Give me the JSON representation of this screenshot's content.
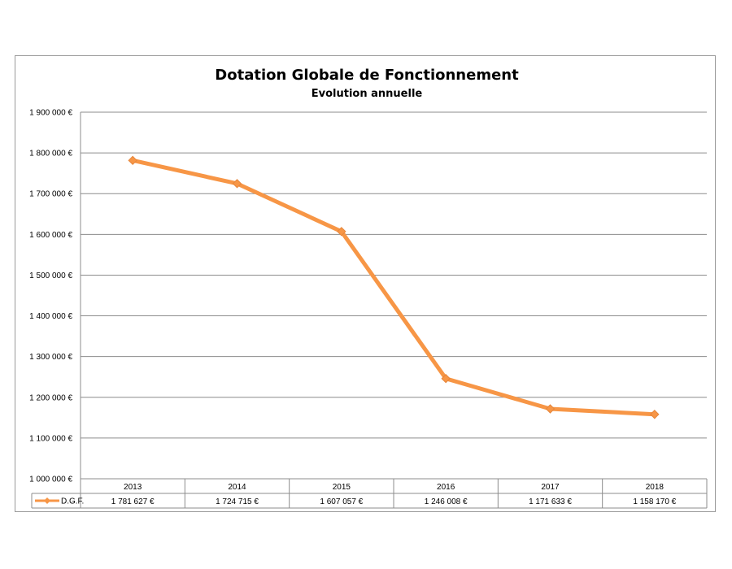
{
  "chart_data": {
    "type": "line",
    "title": "Dotation Globale de Fonctionnement",
    "subtitle": "Evolution annuelle",
    "categories": [
      "2013",
      "2014",
      "2015",
      "2016",
      "2017",
      "2018"
    ],
    "series": [
      {
        "name": "D.G.F.",
        "values": [
          1781627,
          1724715,
          1607057,
          1246008,
          1171633,
          1158170
        ],
        "labels": [
          "1 781 627 €",
          "1 724 715 €",
          "1 607 057 €",
          "1 246 008 €",
          "1 171 633 €",
          "1 158 170 €"
        ],
        "color": "#f79646"
      }
    ],
    "ylim": [
      1000000,
      1900000
    ],
    "yticks": [
      {
        "value": 1000000,
        "label": "1 000 000 €"
      },
      {
        "value": 1100000,
        "label": "1 100 000 €"
      },
      {
        "value": 1200000,
        "label": "1 200 000 €"
      },
      {
        "value": 1300000,
        "label": "1 300 000 €"
      },
      {
        "value": 1400000,
        "label": "1 400 000 €"
      },
      {
        "value": 1500000,
        "label": "1 500 000 €"
      },
      {
        "value": 1600000,
        "label": "1 600 000 €"
      },
      {
        "value": 1700000,
        "label": "1 700 000 €"
      },
      {
        "value": 1800000,
        "label": "1 800 000 €"
      },
      {
        "value": 1900000,
        "label": "1 900 000 €"
      }
    ],
    "grid": true,
    "legend": "data-table"
  }
}
